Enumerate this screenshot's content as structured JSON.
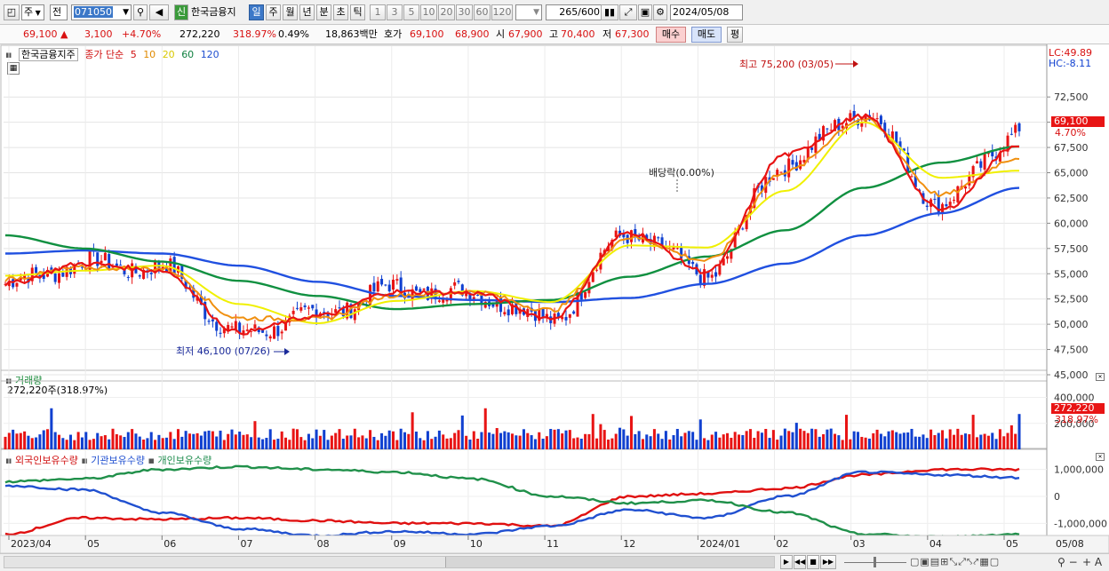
{
  "toolbar": {
    "period_select": "주",
    "name_select": "전",
    "code": "071050",
    "credit_badge": "신",
    "stock_name": "한국금융지",
    "timeframes": [
      "일",
      "주",
      "월",
      "년",
      "분",
      "초",
      "틱"
    ],
    "active_timeframe": "일",
    "intervals": [
      "1",
      "3",
      "5",
      "10",
      "20",
      "30",
      "60",
      "120"
    ],
    "count": "265",
    "count_max": "/600",
    "date": "2024/05/08"
  },
  "quote": {
    "price": "69,100",
    "change": "3,100",
    "change_pct": "+4.70%",
    "volume": "272,220",
    "volume_ratio": "318.97%",
    "turnover": "0.49%",
    "amount": "18,863백만",
    "bid_label": "호가",
    "bid1": "69,100",
    "bid2": "68,900",
    "open_label": "시",
    "open": "67,900",
    "high_label": "고",
    "high": "70,400",
    "low_label": "저",
    "low": "67,300",
    "buy_button": "매수",
    "sell_button": "매도",
    "eval_button": "평"
  },
  "price_panel": {
    "title": "한국금융지주",
    "ma_label": "종가 단순",
    "ma_periods": [
      "5",
      "10",
      "20",
      "60",
      "120"
    ],
    "lc_label": "LC:49.89",
    "hc_label": "HC:-8.11",
    "high_annotation": "최고 75,200 (03/05)",
    "low_annotation": "최저 46,100 (07/26)",
    "dividend_annotation": "배당락(0.00%)",
    "last_price_tag": "69,100",
    "last_pct_tag": "4.70%"
  },
  "volume_panel": {
    "title": "거래량",
    "subtitle": "272,220주(318.97%)",
    "last_tag": "272,220",
    "last_pct_tag": "318.97%"
  },
  "holding_panel": {
    "series_labels": [
      "외국인보유수량",
      "기관보유수량",
      "개인보유수량"
    ]
  },
  "colors": {
    "ma5": "#e81414",
    "ma10": "#f09010",
    "ma20": "#f0f000",
    "ma60": "#109040",
    "ma120": "#2050e0",
    "up": "#e81414",
    "down": "#1040d0",
    "foreign": "#e01010",
    "institution": "#2050d0",
    "individual": "#20904a"
  },
  "chart_data": [
    {
      "type": "candlestick",
      "title": "한국금융지주",
      "ylim": [
        45000,
        77000
      ],
      "yticks": [
        "72,500",
        "70,000",
        "67,500",
        "65,000",
        "62,500",
        "60,000",
        "57,500",
        "55,000",
        "52,500",
        "50,000",
        "47,500",
        "45,000"
      ],
      "x_tick_labels": [
        "2023/04",
        "05",
        "06",
        "07",
        "08",
        "09",
        "10",
        "11",
        "12",
        "2024/01",
        "02",
        "03",
        "04",
        "05",
        "05/08"
      ],
      "close_anchor_months": [
        "2023/04",
        "2023/05",
        "2023/06",
        "2023/07",
        "2023/08",
        "2023/09",
        "2023/10",
        "2023/11",
        "2023/12",
        "2024/01",
        "2024/02",
        "2024/03",
        "2024/04",
        "2024/05"
      ],
      "close_anchor_values": [
        54000,
        56000,
        55500,
        49000,
        51000,
        53500,
        53000,
        50500,
        59000,
        55000,
        66000,
        71000,
        62000,
        69100
      ],
      "series": [
        {
          "name": "5",
          "values": [
            54000,
            56000,
            55300,
            49200,
            50800,
            53200,
            53100,
            50600,
            59100,
            55200,
            66800,
            70600,
            61300,
            67800
          ]
        },
        {
          "name": "10",
          "values": [
            54500,
            55600,
            55500,
            50600,
            50500,
            52900,
            53200,
            51400,
            58600,
            56300,
            65100,
            70300,
            62800,
            66500
          ]
        },
        {
          "name": "20",
          "values": [
            54800,
            55300,
            55800,
            52000,
            50100,
            52300,
            53300,
            52200,
            57800,
            57600,
            63200,
            70000,
            64500,
            65200
          ]
        },
        {
          "name": "60",
          "values": [
            58800,
            57500,
            56200,
            54300,
            52800,
            51500,
            52000,
            52400,
            54700,
            56700,
            59300,
            63500,
            66000,
            67600
          ]
        },
        {
          "name": "120",
          "values": [
            57000,
            57300,
            57000,
            55800,
            54200,
            52800,
            52400,
            52200,
            52600,
            54000,
            56000,
            58800,
            61000,
            63500
          ]
        }
      ],
      "annotations": [
        "최고 75,200 (03/05)",
        "최저 46,100 (07/26)",
        "배당락(0.00%)"
      ]
    },
    {
      "type": "bar",
      "title": "거래량",
      "ylim": [
        0,
        520000
      ],
      "yticks": [
        "400,000",
        "200,000"
      ],
      "last_value": 272220
    },
    {
      "type": "line",
      "title": "외국인보유수량 / 기관보유수량 / 개인보유수량",
      "ylim": [
        -1450000,
        1350000
      ],
      "yticks": [
        "1,000,000",
        "0",
        "-1,000,000"
      ],
      "series": [
        {
          "name": "외국인보유수량",
          "values": [
            -1400000,
            -800000,
            -850000,
            -800000,
            -900000,
            -1000000,
            -1000000,
            -1100000,
            0,
            100000,
            300000,
            800000,
            1000000,
            1000000
          ]
        },
        {
          "name": "기관보유수량",
          "values": [
            400000,
            250000,
            -600000,
            -1200000,
            -1450000,
            -1300000,
            -1400000,
            -1100000,
            -500000,
            -800000,
            0,
            900000,
            800000,
            700000
          ]
        },
        {
          "name": "개인보유수량",
          "values": [
            550000,
            650000,
            1000000,
            1100000,
            1000000,
            900000,
            650000,
            0,
            -250000,
            -150000,
            -600000,
            -1400000,
            -1500000,
            -1400000
          ]
        }
      ]
    }
  ]
}
